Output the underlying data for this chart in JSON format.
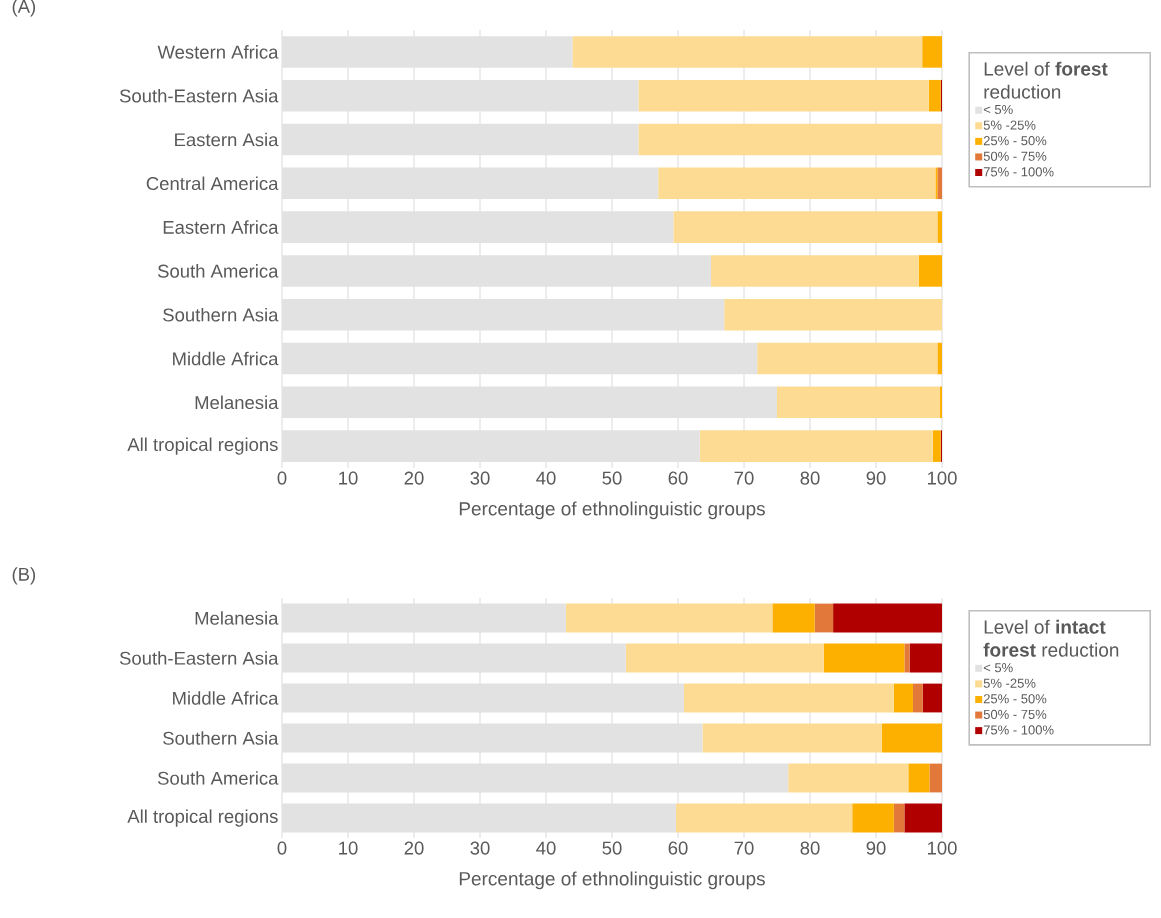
{
  "chart_data": [
    {
      "type": "bar",
      "orientation": "horizontal",
      "stacked": true,
      "title": "(A)",
      "xlabel": "Percentage of ethnolinguistic groups",
      "legend_title": "Level of **forest** reduction",
      "legend": "right",
      "grid": "x",
      "xlim": [
        0,
        100
      ],
      "xticks": [
        0,
        10,
        20,
        30,
        40,
        50,
        60,
        70,
        80,
        90,
        100
      ],
      "categories": [
        "Western Africa",
        "South-Eastern Asia",
        "Eastern Asia",
        "Central America",
        "Eastern Africa",
        "South America",
        "Southern Asia",
        "Middle Africa",
        "Melanesia",
        "All tropical regions"
      ],
      "series": [
        {
          "name": "< 5%",
          "color": "#e2e2e2",
          "values": [
            44,
            54,
            54,
            57,
            59.3,
            65,
            67,
            72,
            75,
            63.3
          ]
        },
        {
          "name": "5% -25%",
          "color": "#fddb93",
          "values": [
            53,
            44,
            46,
            42,
            40,
            31.5,
            33,
            27.3,
            24.7,
            35.3
          ]
        },
        {
          "name": "25% - 50%",
          "color": "#fdb000",
          "values": [
            3,
            1.8,
            0,
            0.3,
            0.7,
            3.5,
            0,
            0.7,
            0.3,
            1.2
          ]
        },
        {
          "name": "50% - 75%",
          "color": "#e2793b",
          "values": [
            0,
            0,
            0,
            0.7,
            0,
            0,
            0,
            0,
            0,
            0
          ]
        },
        {
          "name": "75% - 100%",
          "color": "#b00000",
          "values": [
            0,
            0.2,
            0,
            0,
            0,
            0,
            0,
            0,
            0,
            0.2
          ]
        }
      ]
    },
    {
      "type": "bar",
      "orientation": "horizontal",
      "stacked": true,
      "title": "(B)",
      "xlabel": "Percentage of ethnolinguistic groups",
      "legend_title": "Level of **intact forest** reduction",
      "legend": "right",
      "grid": "x",
      "xlim": [
        0,
        100
      ],
      "xticks": [
        0,
        10,
        20,
        30,
        40,
        50,
        60,
        70,
        80,
        90,
        100
      ],
      "categories": [
        "Melanesia",
        "South-Eastern Asia",
        "Middle Africa",
        "Southern Asia",
        "South America",
        "All tropical regions"
      ],
      "series": [
        {
          "name": "< 5%",
          "color": "#e2e2e2",
          "values": [
            43,
            52.1,
            60.9,
            63.7,
            76.7,
            59.7
          ]
        },
        {
          "name": "5% -25%",
          "color": "#fddb93",
          "values": [
            31.3,
            30,
            31.8,
            27.2,
            18.2,
            26.7
          ]
        },
        {
          "name": "25% - 50%",
          "color": "#fdb000",
          "values": [
            6.4,
            12.2,
            2.9,
            9.1,
            3.2,
            6.3
          ]
        },
        {
          "name": "50% - 75%",
          "color": "#e2793b",
          "values": [
            2.8,
            0.8,
            1.5,
            0,
            1.9,
            1.6
          ]
        },
        {
          "name": "75% - 100%",
          "color": "#b00000",
          "values": [
            16.5,
            4.9,
            2.9,
            0,
            0,
            5.7
          ]
        }
      ]
    }
  ]
}
